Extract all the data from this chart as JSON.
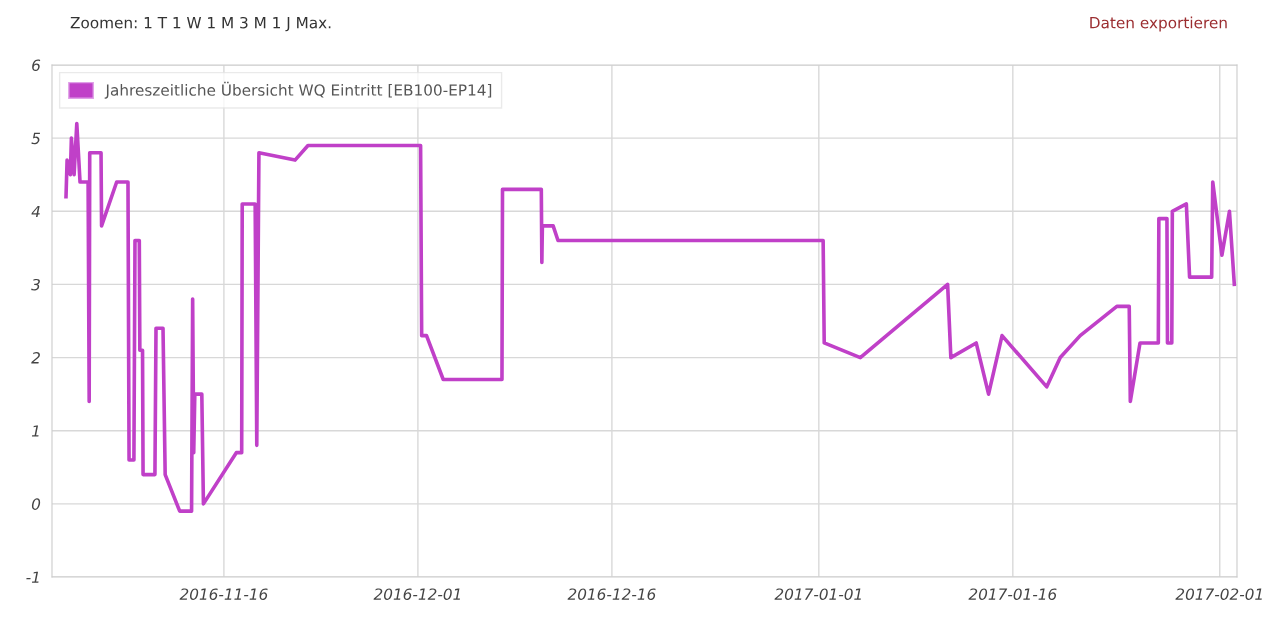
{
  "chart_data": {
    "type": "line",
    "annotations": [
      "Zoomen: 1 T 1 W 1 M 3 M 1 J Max.",
      "Daten exportieren"
    ],
    "xlim": [
      "2016-11-02T17:00",
      "2017-02-02T08:00"
    ],
    "xticks": [
      "2016-11-16",
      "2016-12-01",
      "2016-12-16",
      "2017-01-01",
      "2017-01-16",
      "2017-02-01"
    ],
    "ylim": [
      -1,
      6
    ],
    "yticks": [
      -1,
      0,
      1,
      2,
      3,
      4,
      5,
      6
    ],
    "grid": true,
    "legend": "top left",
    "marker": "none",
    "line_style": "solid",
    "series": [
      {
        "name": "Jahreszeitliche Übersicht WQ Eintritt [EB100-EP14]",
        "color": "#c040c8",
        "x": [
          "2016-11-03T19:00",
          "2016-11-03T21:00",
          "2016-11-04T03:00",
          "2016-11-04T05:00",
          "2016-11-04T10:00",
          "2016-11-04T15:00",
          "2016-11-04T21:00",
          "2016-11-05T12:00",
          "2016-11-05T14:00",
          "2016-11-05T15:00",
          "2016-11-06T12:00",
          "2016-11-06T13:00",
          "2016-11-07T17:00",
          "2016-11-08T14:00",
          "2016-11-08T16:00",
          "2016-11-09T01:00",
          "2016-11-09T03:00",
          "2016-11-09T11:00",
          "2016-11-09T12:00",
          "2016-11-09T17:00",
          "2016-11-09T18:00",
          "2016-11-10T16:00",
          "2016-11-10T18:00",
          "2016-11-11T07:00",
          "2016-11-11T11:00",
          "2016-11-12T14:00",
          "2016-11-13T12:00",
          "2016-11-13T14:00",
          "2016-11-13T16:00",
          "2016-11-13T18:00",
          "2016-11-14T07:00",
          "2016-11-14T10:00",
          "2016-11-16T23:00",
          "2016-11-17T09:00",
          "2016-11-17T10:00",
          "2016-11-18T10:00",
          "2016-11-18T13:00",
          "2016-11-18T17:00",
          "2016-11-21T12:00",
          "2016-11-22T12:00",
          "2016-12-01T05:00",
          "2016-12-01T07:00",
          "2016-12-01T16:00",
          "2016-12-02T23:00",
          "2016-12-07T12:00",
          "2016-12-07T13:00",
          "2016-12-10T13:00",
          "2016-12-10T14:00",
          "2016-12-10T15:00",
          "2016-12-11T11:00",
          "2016-12-11T20:00",
          "2017-01-01T08:00",
          "2017-01-01T10:00",
          "2017-01-04T05:00",
          "2017-01-10T23:00",
          "2017-01-11T05:00",
          "2017-01-13T04:00",
          "2017-01-14T03:00",
          "2017-01-15T04:00",
          "2017-01-18T15:00",
          "2017-01-19T16:00",
          "2017-01-21T05:00",
          "2017-01-24T01:00",
          "2017-01-25T00:00",
          "2017-01-25T02:00",
          "2017-01-25T20:00",
          "2017-01-27T06:00",
          "2017-01-27T07:00",
          "2017-01-27T22:00",
          "2017-01-27T23:00",
          "2017-01-28T07:00",
          "2017-01-28T08:00",
          "2017-01-29T10:00",
          "2017-01-29T16:00",
          "2017-01-31T09:00",
          "2017-01-31T11:00",
          "2017-02-01T04:00",
          "2017-02-01T18:00",
          "2017-02-02T03:00"
        ],
        "values": [
          4.2,
          4.7,
          4.5,
          5.0,
          4.5,
          5.2,
          4.4,
          4.4,
          1.4,
          4.8,
          4.8,
          3.8,
          4.4,
          4.4,
          0.6,
          0.6,
          3.6,
          3.6,
          2.1,
          2.1,
          0.4,
          0.4,
          2.4,
          2.4,
          0.4,
          -0.1,
          -0.1,
          2.8,
          0.7,
          1.5,
          1.5,
          0.0,
          0.7,
          0.7,
          4.1,
          4.1,
          0.8,
          4.8,
          4.7,
          4.9,
          4.9,
          2.3,
          2.3,
          1.7,
          1.7,
          4.3,
          4.3,
          3.3,
          3.8,
          3.8,
          3.6,
          3.6,
          2.2,
          2.0,
          3.0,
          2.0,
          2.2,
          1.5,
          2.3,
          1.6,
          2.0,
          2.3,
          2.7,
          2.7,
          1.4,
          2.2,
          2.2,
          3.9,
          3.9,
          2.2,
          2.2,
          4.0,
          4.1,
          3.1,
          3.1,
          4.4,
          3.4,
          4.0,
          3.0
        ]
      }
    ]
  }
}
